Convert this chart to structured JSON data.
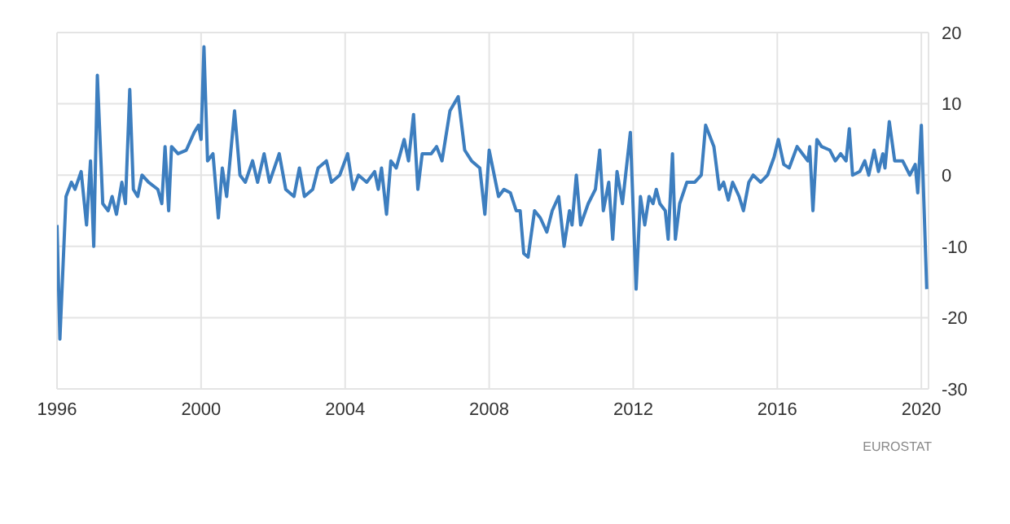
{
  "chart_data": {
    "type": "line",
    "annotations": [
      "EUROSTAT"
    ],
    "x": [
      1996.0,
      1996.08,
      1996.25,
      1996.4,
      1996.5,
      1996.67,
      1996.82,
      1996.93,
      1997.02,
      1997.12,
      1997.27,
      1997.42,
      1997.53,
      1997.65,
      1997.8,
      1997.9,
      1998.02,
      1998.12,
      1998.24,
      1998.36,
      1998.54,
      1998.8,
      1998.91,
      1999.0,
      1999.1,
      1999.18,
      1999.36,
      1999.59,
      1999.81,
      1999.93,
      2000.0,
      2000.08,
      2000.18,
      2000.33,
      2000.48,
      2000.59,
      2000.71,
      2000.93,
      2001.08,
      2001.23,
      2001.43,
      2001.57,
      2001.75,
      2001.9,
      2002.17,
      2002.35,
      2002.58,
      2002.73,
      2002.87,
      2003.1,
      2003.25,
      2003.48,
      2003.62,
      2003.85,
      2004.07,
      2004.22,
      2004.37,
      2004.6,
      2004.82,
      2004.92,
      2005.01,
      2005.15,
      2005.27,
      2005.42,
      2005.64,
      2005.76,
      2005.9,
      2006.02,
      2006.14,
      2006.39,
      2006.54,
      2006.69,
      2006.91,
      2007.14,
      2007.32,
      2007.51,
      2007.74,
      2007.88,
      2008.0,
      2008.26,
      2008.41,
      2008.59,
      2008.75,
      2008.86,
      2008.96,
      2009.08,
      2009.26,
      2009.42,
      2009.6,
      2009.75,
      2009.93,
      2010.08,
      2010.23,
      2010.3,
      2010.42,
      2010.54,
      2010.75,
      2010.95,
      2011.07,
      2011.17,
      2011.32,
      2011.43,
      2011.55,
      2011.7,
      2011.92,
      2012.08,
      2012.2,
      2012.32,
      2012.44,
      2012.55,
      2012.64,
      2012.74,
      2012.89,
      2012.97,
      2013.09,
      2013.17,
      2013.29,
      2013.49,
      2013.71,
      2013.89,
      2014.01,
      2014.24,
      2014.39,
      2014.51,
      2014.64,
      2014.76,
      2014.94,
      2015.06,
      2015.21,
      2015.33,
      2015.54,
      2015.73,
      2015.91,
      2016.03,
      2016.18,
      2016.33,
      2016.55,
      2016.7,
      2016.85,
      2016.9,
      2016.99,
      2017.1,
      2017.23,
      2017.46,
      2017.61,
      2017.76,
      2017.91,
      2018.0,
      2018.09,
      2018.29,
      2018.43,
      2018.54,
      2018.69,
      2018.81,
      2018.93,
      2018.99,
      2019.11,
      2019.26,
      2019.48,
      2019.68,
      2019.83,
      2019.9,
      2020.0,
      2020.15
    ],
    "series": [
      {
        "color": "#3d7ebf",
        "values": [
          -7,
          -23,
          -3,
          -1,
          -2,
          0.5,
          -7,
          2,
          -10,
          14,
          -4,
          -5,
          -3,
          -5.5,
          -1,
          -4,
          12,
          -2,
          -3,
          0,
          -1,
          -2,
          -4,
          4,
          -5,
          4,
          3,
          3.5,
          6,
          7,
          5,
          18,
          2,
          3,
          -6,
          1,
          -3,
          9,
          0,
          -1,
          2,
          -1,
          3,
          -1,
          3,
          -2,
          -3,
          1,
          -3,
          -2,
          1,
          2,
          -1,
          0,
          3,
          -2,
          0,
          -1,
          0.5,
          -2,
          1,
          -5.5,
          2,
          1,
          5,
          2,
          8.5,
          -2,
          3,
          3,
          4,
          2,
          9,
          11,
          3.5,
          2,
          1,
          -5.5,
          3.5,
          -3,
          -2,
          -2.5,
          -5,
          -5,
          -11,
          -11.5,
          -5,
          -6,
          -8,
          -5,
          -3,
          -10,
          -5,
          -7,
          0,
          -7,
          -4,
          -2,
          3.5,
          -5,
          -1,
          -9,
          0.5,
          -4,
          6,
          -16,
          -3,
          -7,
          -3,
          -4,
          -2,
          -4,
          -5,
          -9,
          3,
          -9,
          -4,
          -1,
          -1,
          0,
          7,
          4,
          -2,
          -1,
          -3.5,
          -1,
          -3,
          -5,
          -1,
          0,
          -1,
          0,
          2.5,
          5,
          1.5,
          1,
          4,
          3,
          2,
          4,
          -5,
          5,
          4,
          3.5,
          2,
          3,
          2,
          6.5,
          0,
          0.5,
          2,
          0,
          3.5,
          0.5,
          3,
          1,
          7.5,
          2,
          2,
          0,
          1.5,
          -2.5,
          7,
          -16
        ]
      }
    ],
    "xlim": [
      1996,
      2020.2
    ],
    "xticks": [
      1996,
      2000,
      2004,
      2008,
      2012,
      2016,
      2020
    ],
    "ylim": [
      -30,
      20
    ],
    "yticks": [
      -30,
      -20,
      -10,
      0,
      10,
      20
    ],
    "grid": true
  }
}
